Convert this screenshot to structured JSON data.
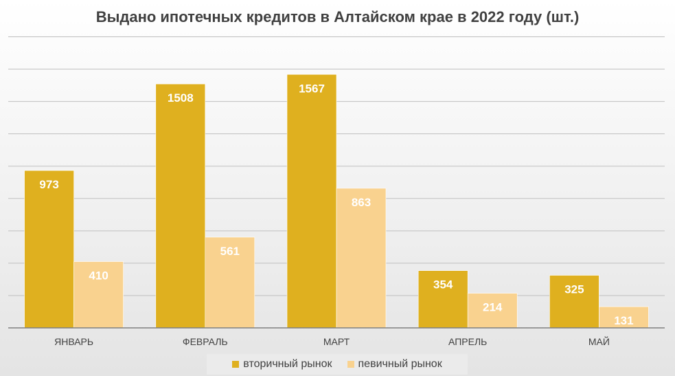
{
  "chart_data": {
    "type": "bar",
    "title": "Выдано ипотечных кредитов в Алтайском крае в 2022 году (шт.)",
    "xlabel": "",
    "ylabel": "",
    "categories": [
      "ЯНВАРЬ",
      "ФЕВРАЛЬ",
      "МАРТ",
      "АПРЕЛЬ",
      "МАЙ"
    ],
    "series": [
      {
        "name": "вторичный рынок",
        "values": [
          973,
          1508,
          1567,
          354,
          325
        ],
        "color": "#dfb01f"
      },
      {
        "name": "певичный рынок",
        "values": [
          410,
          561,
          863,
          214,
          131
        ],
        "color": "#f9d28f"
      }
    ],
    "ylim": [
      0,
      2000
    ],
    "grid": true,
    "legend": "bottom",
    "data_label_color": "#ffffff",
    "grid_color": "#bfbfbf",
    "axis_label_color": "#404040"
  }
}
